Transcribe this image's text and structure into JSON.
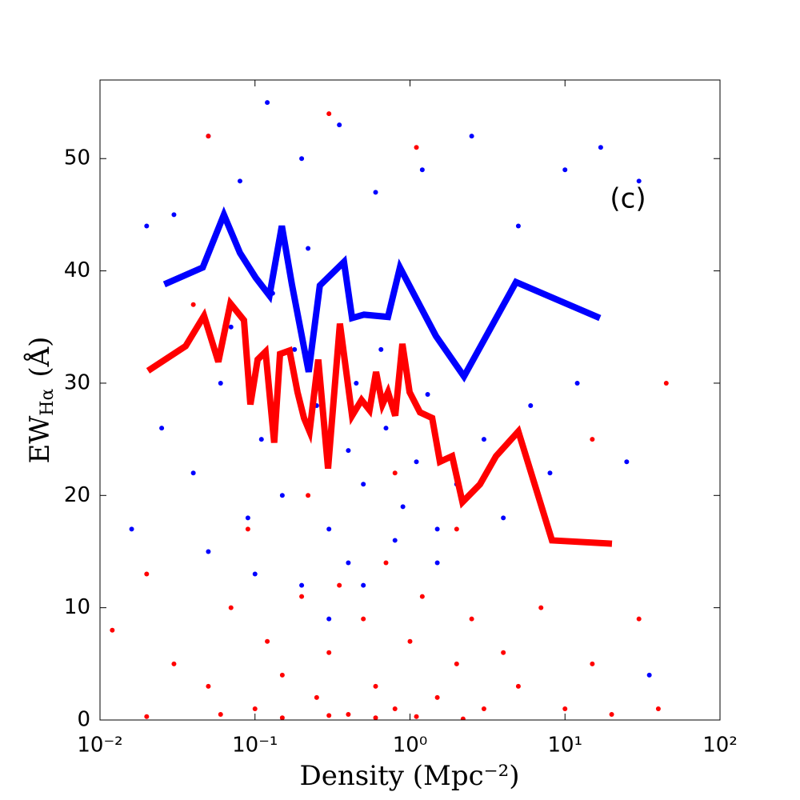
{
  "chart_data": {
    "type": "scatter",
    "xscale": "log",
    "xlabel": "Density (Mpc⁻²)",
    "ylabel": "EW",
    "ylabel_sub": "Hα",
    "ylabel_unit": "(Å)",
    "annotation": "(c)",
    "xlim": [
      0.01,
      100
    ],
    "ylim": [
      0,
      57
    ],
    "xticks": [
      {
        "value": 0.01,
        "label": "10⁻²"
      },
      {
        "value": 0.1,
        "label": "10⁻¹"
      },
      {
        "value": 1,
        "label": "10⁰"
      },
      {
        "value": 10,
        "label": "10¹"
      },
      {
        "value": 100,
        "label": "10²"
      }
    ],
    "yticks": [
      0,
      10,
      20,
      30,
      40,
      50
    ],
    "series": [
      {
        "mode": "markers",
        "color": "#0000ff",
        "x": [
          0.03,
          0.05,
          0.08,
          0.12,
          0.2,
          0.35,
          0.6,
          1.2,
          2.5,
          5,
          10,
          17,
          0.025,
          0.04,
          0.06,
          0.09,
          0.11,
          0.15,
          0.18,
          0.25,
          0.3,
          0.4,
          0.5,
          0.7,
          0.9,
          1.1,
          1.5,
          2,
          3,
          4,
          6,
          8,
          12,
          25,
          0.05,
          0.1,
          0.2,
          0.4,
          0.8,
          1.5,
          0.07,
          0.13,
          0.22,
          0.45,
          0.65,
          1.3,
          0.016,
          0.3,
          0.5,
          35,
          0.02,
          30
        ],
        "y": [
          45,
          52,
          48,
          55,
          50,
          53,
          47,
          49,
          52,
          44,
          49,
          51,
          26,
          22,
          30,
          18,
          25,
          20,
          33,
          28,
          17,
          24,
          21,
          26,
          19,
          23,
          17,
          21,
          25,
          18,
          28,
          22,
          30,
          23,
          15,
          13,
          12,
          14,
          16,
          14,
          35,
          38,
          42,
          30,
          33,
          29,
          17,
          9,
          12,
          4,
          44,
          48
        ]
      },
      {
        "mode": "markers",
        "color": "#ff0000",
        "x": [
          0.012,
          0.02,
          0.03,
          0.05,
          0.07,
          0.1,
          0.12,
          0.15,
          0.2,
          0.25,
          0.3,
          0.35,
          0.4,
          0.5,
          0.6,
          0.7,
          0.8,
          1,
          1.2,
          1.5,
          2,
          2.5,
          3,
          4,
          5,
          7,
          10,
          15,
          20,
          30,
          45,
          0.02,
          0.06,
          0.15,
          0.3,
          0.6,
          1.1,
          2.2,
          0.04,
          0.05,
          0.3,
          1.1,
          15,
          0.22,
          0.8,
          2,
          0.09,
          40
        ],
        "y": [
          8,
          13,
          5,
          3,
          10,
          1,
          7,
          4,
          11,
          2,
          6,
          12,
          0.5,
          9,
          3,
          14,
          1,
          7,
          11,
          2,
          5,
          9,
          1,
          6,
          3,
          10,
          1,
          5,
          0.5,
          9,
          30,
          0.3,
          0.5,
          0.2,
          0.4,
          0.2,
          0.3,
          0.1,
          37,
          52,
          54,
          51,
          25,
          20,
          22,
          17,
          17,
          1
        ]
      },
      {
        "mode": "line",
        "color": "#0000ff",
        "x": [
          0.026,
          0.046,
          0.063,
          0.08,
          0.101,
          0.124,
          0.149,
          0.173,
          0.222,
          0.262,
          0.375,
          0.423,
          0.505,
          0.721,
          0.861,
          1.09,
          1.47,
          2.23,
          4.83,
          16.8
        ],
        "y": [
          38.8,
          40.3,
          45.0,
          41.6,
          39.4,
          37.8,
          44.0,
          38.8,
          31.0,
          38.7,
          40.8,
          35.8,
          36.1,
          35.9,
          40.3,
          37.6,
          34.2,
          30.6,
          39.0,
          35.8
        ]
      },
      {
        "mode": "line",
        "color": "#ff0000",
        "x": [
          0.0204,
          0.0357,
          0.0469,
          0.058,
          0.0694,
          0.0849,
          0.0934,
          0.104,
          0.117,
          0.133,
          0.145,
          0.167,
          0.188,
          0.207,
          0.225,
          0.256,
          0.296,
          0.353,
          0.423,
          0.487,
          0.548,
          0.604,
          0.664,
          0.721,
          0.803,
          0.893,
          0.994,
          1.16,
          1.39,
          1.56,
          1.87,
          2.18,
          2.83,
          3.59,
          5.0,
          8.24,
          20.1
        ],
        "y": [
          31.1,
          33.3,
          36.0,
          31.9,
          37.1,
          35.6,
          28.1,
          32.1,
          32.8,
          24.7,
          32.6,
          32.9,
          29.2,
          26.9,
          25.7,
          32.1,
          22.4,
          35.3,
          27.1,
          28.5,
          27.6,
          31.0,
          28.1,
          29.2,
          27.1,
          33.5,
          29.2,
          27.4,
          26.9,
          23.0,
          23.5,
          19.4,
          21.0,
          23.5,
          25.7,
          16.0,
          15.7
        ]
      }
    ]
  }
}
